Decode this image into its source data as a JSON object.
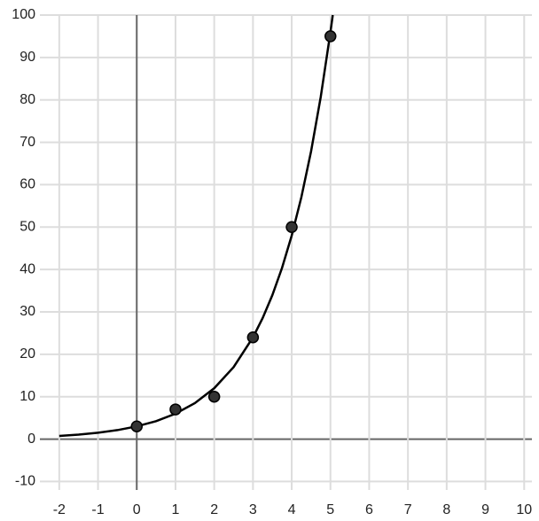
{
  "chart_data": {
    "type": "scatter",
    "xlim": [
      -2.5,
      10.2
    ],
    "ylim": [
      -12,
      100
    ],
    "xticks": [
      -2,
      -1,
      0,
      1,
      2,
      3,
      4,
      5,
      6,
      7,
      8,
      9,
      10
    ],
    "yticks": [
      -10,
      0,
      10,
      20,
      30,
      40,
      50,
      60,
      70,
      80,
      90,
      100
    ],
    "grid": true,
    "series": [
      {
        "type": "scatter",
        "color": "#333333",
        "x": [
          0,
          1,
          2,
          3,
          4,
          5
        ],
        "values": [
          3,
          7,
          10,
          24,
          50,
          95
        ]
      },
      {
        "type": "line",
        "color": "#000000",
        "x": [
          -2,
          -1.5,
          -1,
          -0.5,
          0,
          0.5,
          1,
          1.5,
          2,
          2.5,
          3,
          3.25,
          3.5,
          3.75,
          4,
          4.25,
          4.5,
          4.75,
          5,
          5.06
        ],
        "values": [
          0.75,
          1.06,
          1.5,
          2.12,
          3,
          4.24,
          6,
          8.49,
          12,
          16.97,
          24,
          28.54,
          33.94,
          40.36,
          48,
          57.08,
          67.88,
          80.73,
          96,
          100
        ]
      }
    ]
  }
}
